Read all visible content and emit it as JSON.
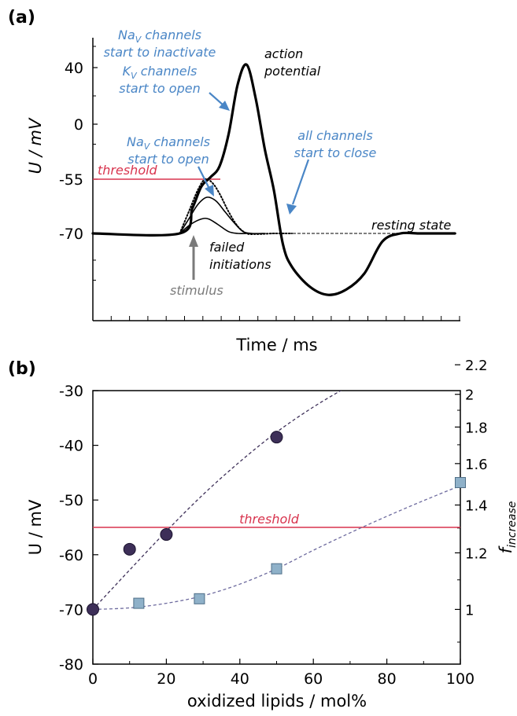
{
  "chart_data": [
    {
      "panel": "(a)",
      "type": "line",
      "xlabel": "Time / ms",
      "ylabel": "U / mV",
      "y_ticks": [
        {
          "value": 40,
          "label": "40"
        },
        {
          "value": 0,
          "label": "0"
        },
        {
          "value": -55,
          "label": "-55"
        },
        {
          "value": -70,
          "label": "-70"
        }
      ],
      "threshold": {
        "value": -55,
        "label": "threshold",
        "color": "#d8344e"
      },
      "series": [
        {
          "key": "action",
          "style": "bold",
          "x": [
            0,
            4.8,
            5.5,
            6.0,
            6.5,
            7.0,
            7.5,
            8.0,
            8.5,
            9.0,
            9.5,
            10.0,
            10.5,
            11.0,
            12.0,
            13.0,
            14.0,
            15.0,
            16.0,
            17.0,
            18.0,
            19.0,
            20.0
          ],
          "y": [
            -70,
            -70,
            -63,
            -57,
            -53,
            -42,
            -10,
            28,
            42,
            18,
            -25,
            -58,
            -78,
            -95,
            -110,
            -116,
            -112,
            -100,
            -76,
            -70,
            -70,
            -70,
            -70
          ]
        },
        {
          "key": "failed_dotted",
          "style": "dotted",
          "x": [
            4.8,
            5.3,
            5.8,
            6.2,
            6.6,
            7.0,
            7.5,
            8.0,
            8.5,
            9.0,
            9.5,
            10.0,
            11.0
          ],
          "y": [
            -70,
            -64,
            -58,
            -55,
            -56,
            -59,
            -64,
            -68,
            -70,
            -70.5,
            -70.3,
            -70,
            -70
          ]
        },
        {
          "key": "failed_2",
          "style": "thin",
          "x": [
            4.8,
            5.3,
            5.8,
            6.3,
            6.8,
            7.3,
            7.8,
            8.3,
            8.8,
            9.5
          ],
          "y": [
            -70,
            -66,
            -62,
            -60,
            -61,
            -64,
            -67,
            -69.5,
            -70,
            -70
          ]
        },
        {
          "key": "failed_3",
          "style": "thin",
          "x": [
            4.8,
            5.4,
            6.0,
            6.4,
            6.9,
            7.5,
            8.0,
            8.5
          ],
          "y": [
            -70,
            -67.5,
            -66,
            -66,
            -67.5,
            -69.5,
            -70,
            -70
          ]
        }
      ],
      "annotations": {
        "nav_inactivate": {
          "pre": "Na",
          "sub": "V",
          "post": " channels",
          "line2": "start to inactivate"
        },
        "kv_open": {
          "pre": "K",
          "sub": "V",
          "post": " channels",
          "line2": "start to open"
        },
        "action_potential": {
          "line1": "action",
          "line2": "potential"
        },
        "nav_open": {
          "pre": "Na",
          "sub": "V",
          "post": " channels",
          "line2": "start to open"
        },
        "all_close": {
          "line1": "all channels",
          "line2": "start to close"
        },
        "resting": "resting state",
        "failed": {
          "line1": "failed",
          "line2": "initiations"
        },
        "stimulus": "stimulus"
      },
      "colors": {
        "annotation": "#4a86c6",
        "stimulus": "#7a7a7a",
        "threshold": "#d8344e"
      }
    },
    {
      "panel": "(b)",
      "type": "scatter",
      "xlabel": "oxidized lipids / mol%",
      "ylabel": "U / mV",
      "y2label_main": "f",
      "y2label_sub": "increase",
      "xlim": [
        0,
        100
      ],
      "ylim": [
        -80,
        -30
      ],
      "x_ticks": [
        0,
        20,
        40,
        60,
        80,
        100
      ],
      "y_ticks": [
        -80,
        -70,
        -60,
        -50,
        -40,
        -30
      ],
      "y2_ticks": [
        {
          "value": 1,
          "label": "1"
        },
        {
          "value": 1.2,
          "label": "1.2"
        },
        {
          "value": 1.4,
          "label": "1.4"
        },
        {
          "value": 1.6,
          "label": "1.6"
        },
        {
          "value": 1.8,
          "label": "1.8"
        },
        {
          "value": 2,
          "label": "2"
        },
        {
          "value": 2.2,
          "label": "2.2"
        }
      ],
      "threshold": {
        "value": -55,
        "label": "threshold",
        "color": "#d8344e"
      },
      "series": [
        {
          "key": "voltage",
          "marker": "circle",
          "color": "#3d2f58",
          "axis": "left",
          "x": [
            0,
            10,
            20,
            50
          ],
          "y": [
            -70,
            -59,
            -56.3,
            -38.5
          ]
        },
        {
          "key": "factor",
          "marker": "square",
          "color": "#8fb1c9",
          "axis": "right",
          "x": [
            12.5,
            29,
            50,
            100
          ],
          "y": [
            1.02,
            1.035,
            1.14,
            1.505
          ]
        }
      ],
      "fits": [
        {
          "key": "voltage_fit",
          "axis": "left",
          "color": "#3d2f58",
          "x": [
            0,
            10,
            20,
            30,
            40,
            50,
            60,
            70
          ],
          "y": [
            -70,
            -62.8,
            -55.7,
            -49.0,
            -43.0,
            -37.6,
            -33.0,
            -29.0
          ]
        },
        {
          "key": "factor_fit",
          "axis": "right",
          "color": "#6d6a9e",
          "x": [
            0,
            10,
            20,
            30,
            40,
            50,
            60,
            70,
            80,
            90,
            100
          ],
          "y": [
            1.0,
            1.005,
            1.02,
            1.045,
            1.085,
            1.14,
            1.21,
            1.28,
            1.35,
            1.42,
            1.49
          ]
        }
      ]
    }
  ]
}
